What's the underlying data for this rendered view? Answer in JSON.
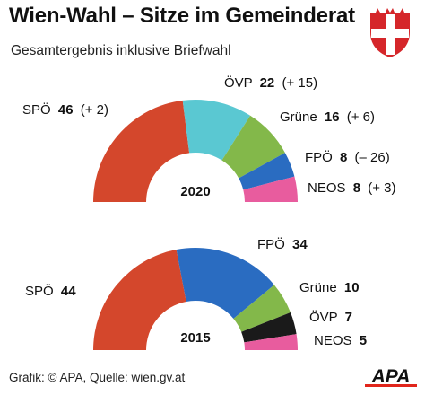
{
  "header": {
    "title": "Wien-Wahl – Sitze im Gemeinderat",
    "subtitle": "Gesamtergebnis inklusive Briefwahl"
  },
  "footer": {
    "source": "Grafik: © APA, Quelle: wien.gv.at",
    "logo_text": "APA"
  },
  "colors": {
    "crest_red": "#d5262a",
    "logo_red": "#e1251b"
  },
  "chart_data": [
    {
      "type": "pie",
      "subtype": "parliament-semicircle",
      "center_label": "2020",
      "categories": [
        "SPÖ",
        "ÖVP",
        "Grüne",
        "FPÖ",
        "NEOS"
      ],
      "values": [
        46,
        22,
        16,
        8,
        8
      ],
      "changes": [
        "+ 2",
        "+ 15",
        "+ 6",
        "– 26",
        "+ 3"
      ],
      "colors": [
        "#d4472c",
        "#5ac8d2",
        "#83b84a",
        "#2a6cc1",
        "#e85c9e"
      ]
    },
    {
      "type": "pie",
      "subtype": "parliament-semicircle",
      "center_label": "2015",
      "categories": [
        "SPÖ",
        "FPÖ",
        "Grüne",
        "ÖVP",
        "NEOS"
      ],
      "values": [
        44,
        34,
        10,
        7,
        5
      ],
      "changes": [],
      "colors": [
        "#d4472c",
        "#2a6cc1",
        "#83b84a",
        "#1a1a1a",
        "#e85c9e"
      ]
    }
  ]
}
